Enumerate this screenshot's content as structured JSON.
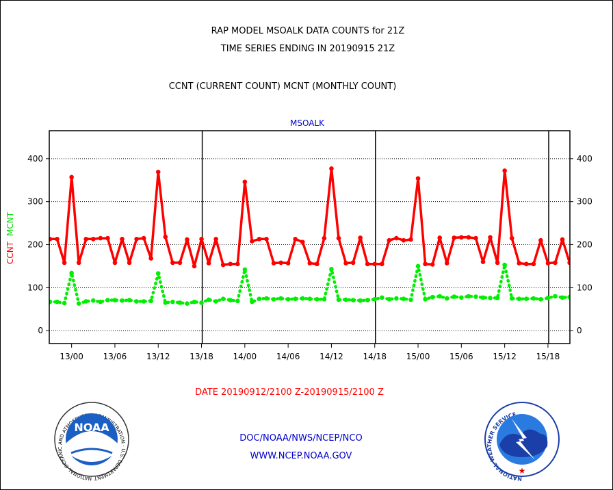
{
  "header": {
    "line1": "RAP MODEL MSOALK DATA COUNTS for 21Z",
    "line2": "TIME SERIES ENDING IN 20190915 21Z",
    "line3": "CCNT (CURRENT COUNT) MCNT (MONTHLY COUNT)"
  },
  "footer": {
    "date_range": "DATE 20190912/2100 Z-20190915/2100 Z",
    "org": "DOC/NOAA/NWS/NCEP/NCO",
    "url": "WWW.NCEP.NOAA.GOV"
  },
  "logos": {
    "noaa_text": "NOAA",
    "noaa_ring": "NATIONAL OCEANIC AND ATMOSPHERIC ADMINISTRATION · U.S. DEPARTMENT OF COMMERCE",
    "nws_ring": "NATIONAL WEATHER SERVICE"
  },
  "colors": {
    "ccnt": "#ff0000",
    "mcnt": "#00ee00",
    "title": "#0000cc",
    "axis": "#000000"
  },
  "chart_data": {
    "type": "line",
    "title": "MSOALK",
    "ylabel_ccnt": "CCNT",
    "ylabel_mcnt": "MCNT",
    "ylim": [
      -30,
      465
    ],
    "yticks": [
      0,
      100,
      200,
      300,
      400
    ],
    "grid": true,
    "x_start": "13/00",
    "x_step_hours": 1,
    "xticks": [
      "13/00",
      "13/06",
      "13/12",
      "13/18",
      "14/00",
      "14/06",
      "14/12",
      "14/18",
      "15/00",
      "15/06",
      "15/12",
      "15/18"
    ],
    "xticks_index": [
      3,
      9,
      15,
      21,
      27,
      33,
      39,
      45,
      51,
      57,
      63,
      69
    ],
    "day_boundaries_index": [
      21,
      45,
      69
    ],
    "series": [
      {
        "name": "CCNT",
        "style": "solid",
        "values": [
          213,
          213,
          158,
          357,
          158,
          213,
          213,
          215,
          215,
          158,
          213,
          158,
          213,
          215,
          168,
          369,
          218,
          158,
          158,
          212,
          150,
          213,
          157,
          213,
          153,
          155,
          155,
          346,
          208,
          213,
          213,
          157,
          158,
          157,
          213,
          206,
          157,
          155,
          215,
          377,
          215,
          157,
          158,
          216,
          155,
          155,
          155,
          210,
          215,
          210,
          212,
          354,
          155,
          154,
          216,
          157,
          216,
          217,
          217,
          215,
          160,
          217,
          158,
          372,
          215,
          157,
          155,
          155,
          210,
          157,
          158,
          212,
          158
        ]
      },
      {
        "name": "MCNT",
        "style": "dotted",
        "values": [
          67,
          67,
          64,
          134,
          63,
          68,
          70,
          67,
          71,
          71,
          70,
          71,
          68,
          68,
          69,
          133,
          65,
          67,
          65,
          63,
          67,
          65,
          72,
          68,
          74,
          71,
          69,
          142,
          67,
          74,
          75,
          73,
          75,
          73,
          74,
          75,
          74,
          73,
          73,
          143,
          72,
          72,
          71,
          70,
          71,
          73,
          77,
          73,
          75,
          74,
          72,
          150,
          73,
          78,
          80,
          75,
          79,
          77,
          80,
          79,
          77,
          76,
          76,
          153,
          75,
          74,
          74,
          75,
          73,
          76,
          80,
          77,
          78
        ]
      }
    ]
  }
}
